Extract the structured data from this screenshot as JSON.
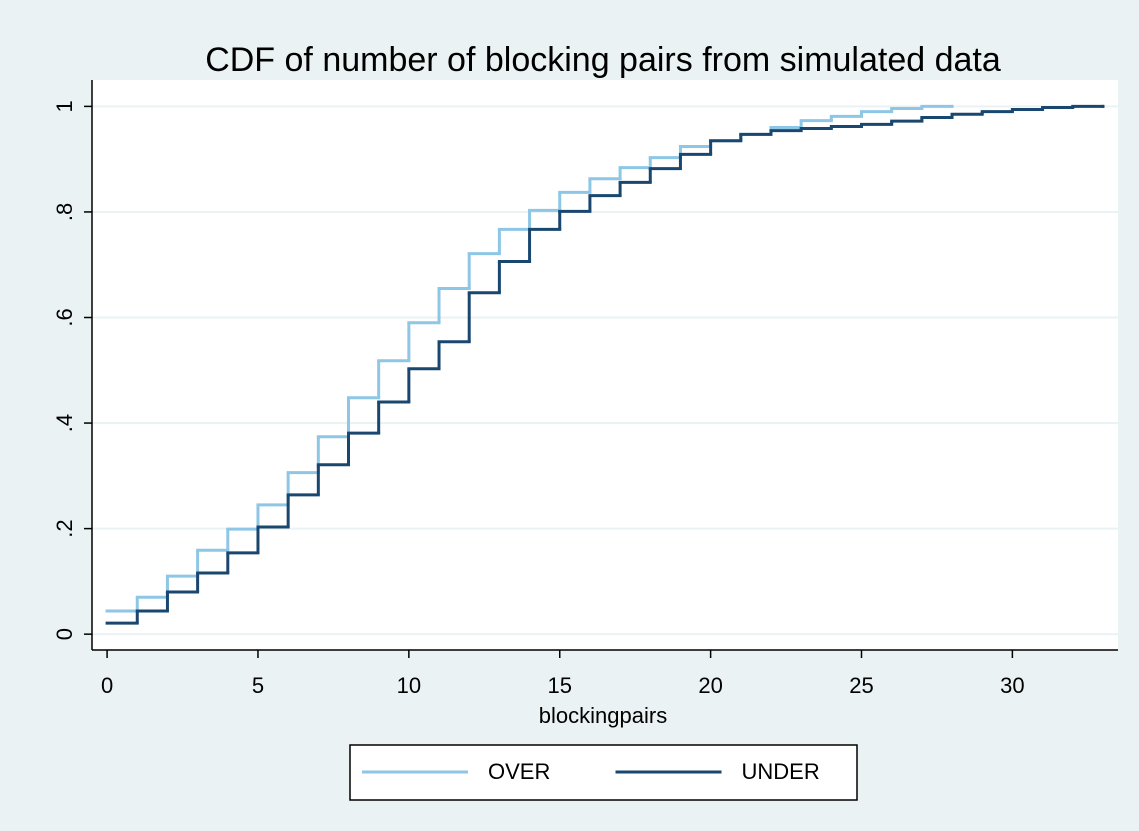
{
  "chart_data": {
    "type": "step",
    "title": "CDF of number of blocking pairs from simulated data",
    "x_label": "blockingpairs",
    "xlim": [
      -0.5,
      33.5
    ],
    "xticks": [
      0,
      5,
      10,
      15,
      20,
      25,
      30
    ],
    "ylim": [
      -0.03,
      1.05
    ],
    "yticks": [
      0,
      {
        "value": 0.2,
        "label": ".2"
      },
      {
        "value": 0.4,
        "label": ".4"
      },
      {
        "value": 0.6,
        "label": ".6"
      },
      {
        "value": 0.8,
        "label": ".8"
      },
      1
    ],
    "grid": true,
    "legend": "bottom",
    "series": [
      {
        "name": "OVER",
        "color": "#8ec6e6",
        "x": [
          0,
          1,
          2,
          3,
          4,
          5,
          6,
          7,
          8,
          9,
          10,
          11,
          12,
          13,
          14,
          15,
          16,
          17,
          18,
          19,
          20,
          21,
          22,
          23,
          24,
          25,
          26,
          27,
          28
        ],
        "values": [
          0.044,
          0.07,
          0.11,
          0.159,
          0.199,
          0.245,
          0.306,
          0.374,
          0.448,
          0.518,
          0.59,
          0.655,
          0.721,
          0.767,
          0.803,
          0.837,
          0.863,
          0.884,
          0.903,
          0.924,
          0.935,
          0.947,
          0.96,
          0.973,
          0.981,
          0.99,
          0.996,
          1.0,
          1.0
        ]
      },
      {
        "name": "UNDER",
        "color": "#1a476f",
        "x": [
          0,
          1,
          2,
          3,
          4,
          5,
          6,
          7,
          8,
          9,
          10,
          11,
          12,
          13,
          14,
          15,
          16,
          17,
          18,
          19,
          20,
          21,
          22,
          23,
          24,
          25,
          26,
          27,
          28,
          29,
          30,
          31,
          32,
          33
        ],
        "values": [
          0.021,
          0.044,
          0.08,
          0.116,
          0.154,
          0.203,
          0.264,
          0.321,
          0.381,
          0.44,
          0.503,
          0.554,
          0.647,
          0.706,
          0.767,
          0.801,
          0.831,
          0.856,
          0.882,
          0.909,
          0.935,
          0.947,
          0.954,
          0.958,
          0.962,
          0.966,
          0.972,
          0.979,
          0.985,
          0.99,
          0.994,
          0.998,
          1.0,
          1.0
        ]
      }
    ]
  }
}
